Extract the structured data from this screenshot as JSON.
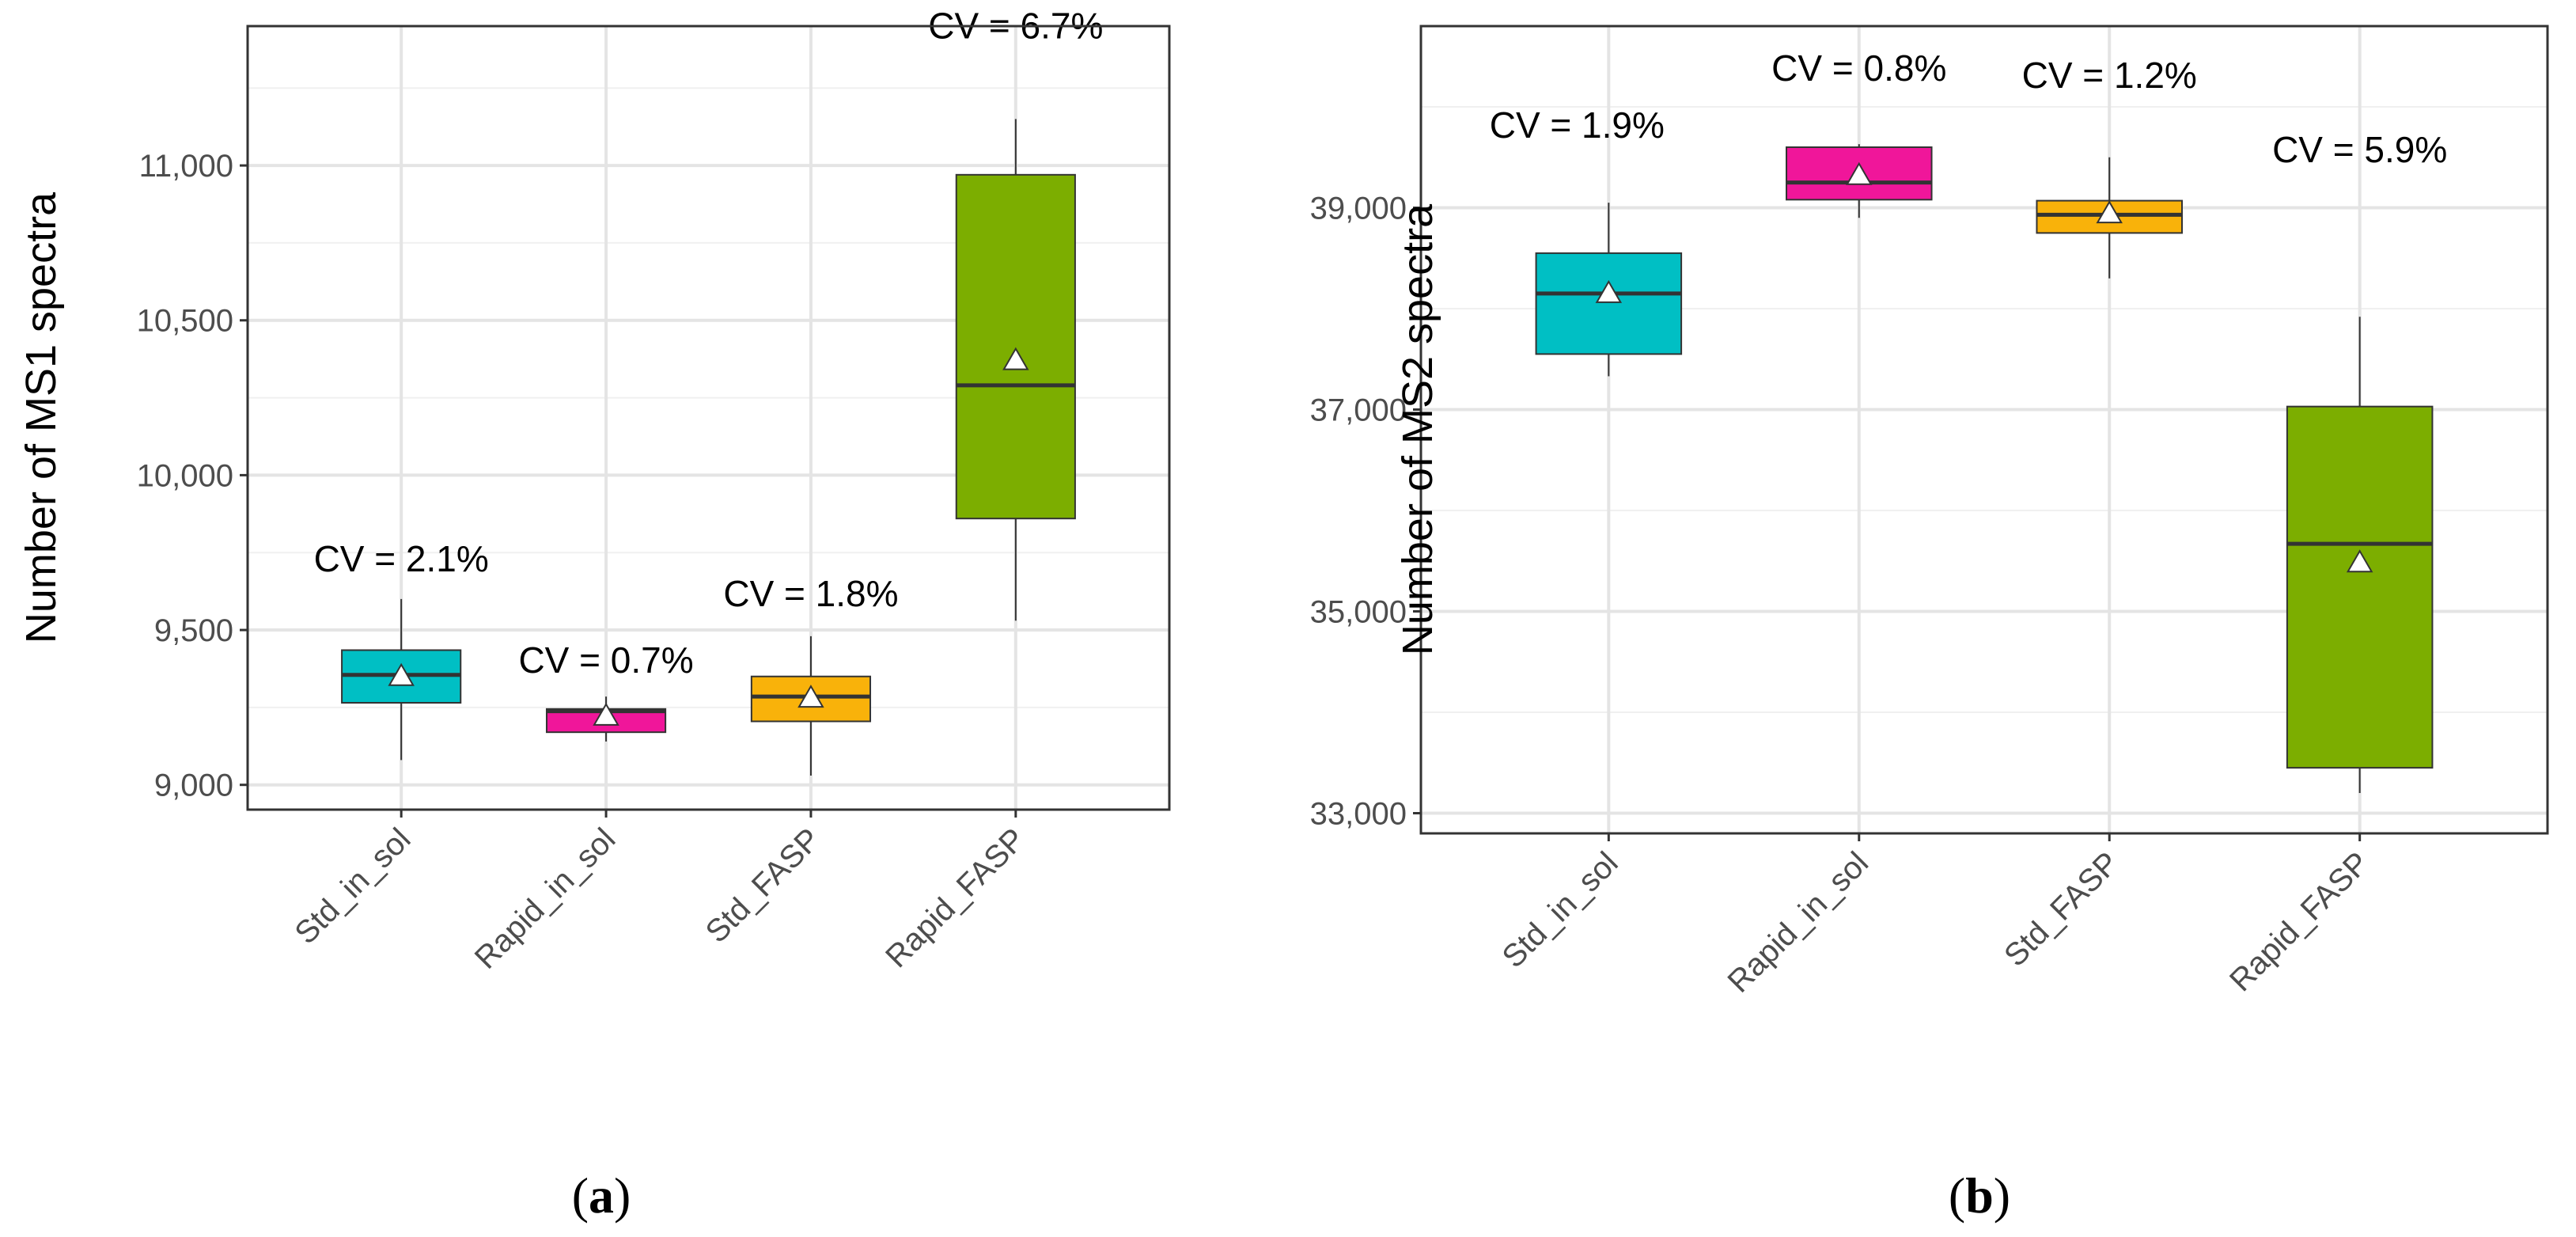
{
  "figure": {
    "panels": [
      {
        "label_open": "(",
        "label_letter": "a",
        "label_close": ")"
      },
      {
        "label_open": "(",
        "label_letter": "b",
        "label_close": ")"
      }
    ]
  },
  "chart_data": [
    {
      "type": "box",
      "ylabel": "Number of MS1 spectra",
      "xlabel": "",
      "ylim": [
        8920,
        11450
      ],
      "yticks": [
        9000,
        9500,
        10000,
        10500,
        11000
      ],
      "ytick_labels": [
        "9,000",
        "9,500",
        "10,000",
        "10,500",
        "11,000"
      ],
      "categories": [
        "Std_in_sol",
        "Rapid_in_sol",
        "Std_FASP",
        "Rapid_FASP"
      ],
      "boxes": [
        {
          "category": "Std_in_sol",
          "color": "#00BFC4",
          "whisker_low": 9080,
          "q1": 9265,
          "median": 9355,
          "q3": 9435,
          "whisker_high": 9600,
          "mean": 9350,
          "cv_label": "CV = 2.1%"
        },
        {
          "category": "Rapid_in_sol",
          "color": "#F0169A",
          "whisker_low": 9140,
          "q1": 9170,
          "median": 9238,
          "q3": 9245,
          "whisker_high": 9285,
          "mean": 9222,
          "cv_label": "CV = 0.7%"
        },
        {
          "category": "Std_FASP",
          "color": "#F9B20A",
          "whisker_low": 9030,
          "q1": 9205,
          "median": 9285,
          "q3": 9350,
          "whisker_high": 9480,
          "mean": 9280,
          "cv_label": "CV = 1.8%"
        },
        {
          "category": "Rapid_FASP",
          "color": "#7CAE00",
          "whisker_low": 9530,
          "q1": 9860,
          "median": 10290,
          "q3": 10970,
          "whisker_high": 11150,
          "mean": 10370,
          "cv_label": "CV = 6.7%"
        }
      ]
    },
    {
      "type": "box",
      "ylabel": "Number of MS2 spectra",
      "xlabel": "",
      "ylim": [
        32800,
        40800
      ],
      "yticks": [
        33000,
        35000,
        37000,
        39000
      ],
      "ytick_labels": [
        "33,000",
        "35,000",
        "37,000",
        "39,000"
      ],
      "categories": [
        "Std_in_sol",
        "Rapid_in_sol",
        "Std_FASP",
        "Rapid_FASP"
      ],
      "boxes": [
        {
          "category": "Std_in_sol",
          "color": "#00BFC4",
          "whisker_low": 37330,
          "q1": 37550,
          "median": 38150,
          "q3": 38550,
          "whisker_high": 39050,
          "mean": 38150,
          "cv_label": "CV = 1.9%"
        },
        {
          "category": "Rapid_in_sol",
          "color": "#F0169A",
          "whisker_low": 38900,
          "q1": 39080,
          "median": 39250,
          "q3": 39600,
          "whisker_high": 39630,
          "mean": 39320,
          "cv_label": "CV = 0.8%"
        },
        {
          "category": "Std_FASP",
          "color": "#F9B20A",
          "whisker_low": 38300,
          "q1": 38750,
          "median": 38930,
          "q3": 39070,
          "whisker_high": 39500,
          "mean": 38940,
          "cv_label": "CV = 1.2%"
        },
        {
          "category": "Rapid_FASP",
          "color": "#7CAE00",
          "whisker_low": 33200,
          "q1": 33450,
          "median": 35670,
          "q3": 37030,
          "whisker_high": 37920,
          "mean": 35480,
          "cv_label": "CV = 5.9%"
        }
      ]
    }
  ]
}
